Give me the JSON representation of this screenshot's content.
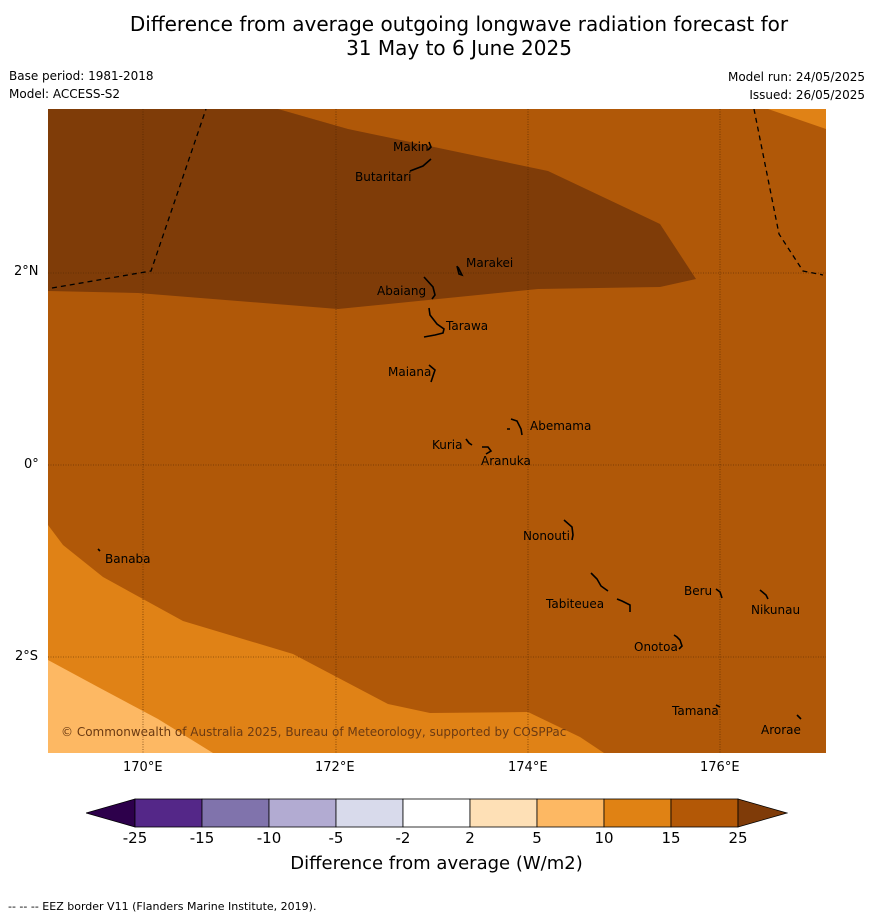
{
  "title": {
    "line1": "Difference from average outgoing longwave radiation forecast for",
    "line2": "31 May to 6 June 2025"
  },
  "meta": {
    "base_period": "Base period: 1981-2018",
    "model": "Model: ACCESS-S2",
    "model_run": "Model run: 24/05/2025",
    "issued": "Issued: 26/05/2025"
  },
  "map": {
    "lat_labels": [
      "2°N",
      "0°",
      "2°S"
    ],
    "lon_labels": [
      "170°E",
      "172°E",
      "174°E",
      "176°E"
    ],
    "places": [
      "Makin",
      "Butaritari",
      "Marakei",
      "Abaiang",
      "Tarawa",
      "Maiana",
      "Abemama",
      "Kuria",
      "Aranuka",
      "Nonouti",
      "Banaba",
      "Beru",
      "Nikunau",
      "Tabiteuea",
      "Onotoa",
      "Tamana",
      "Arorae"
    ],
    "copyright": "© Commonwealth of Australia 2025, Bureau of Meteorology, supported by COSPPac",
    "colors": {
      "band_15_25": "#b05808",
      "band_25_plus": "#7f3c08",
      "band_10_15": "#e08216",
      "band_5_10": "#fdb863"
    }
  },
  "colorbar": {
    "label": "Difference from average (W/m2)",
    "ticks": [
      "-25",
      "-15",
      "-10",
      "-5",
      "-2",
      "2",
      "5",
      "10",
      "15",
      "25"
    ],
    "colors": [
      "#2d004b",
      "#542788",
      "#8073ac",
      "#b2abd2",
      "#d8daeb",
      "#ffffff",
      "#fee0b6",
      "#fdb863",
      "#e08214",
      "#b35806",
      "#7f3b08"
    ]
  },
  "footer": "--  --  -- EEZ border V11 (Flanders Marine Institute, 2019)."
}
